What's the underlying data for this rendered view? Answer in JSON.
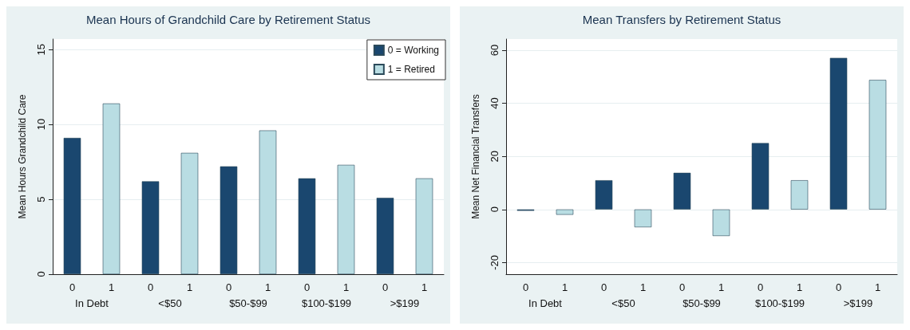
{
  "chart_data": [
    {
      "type": "bar",
      "title": "Mean Hours of Grandchild Care by Retirement Status",
      "ylabel": "Mean Hours Grandchild Care",
      "categories": [
        "In Debt",
        "<$50",
        "$50-$99",
        "$100-$199",
        ">$199"
      ],
      "series": [
        {
          "name": "0 = Working",
          "color": "#1a476f",
          "values": [
            9.1,
            6.2,
            7.2,
            6.4,
            5.1
          ]
        },
        {
          "name": "1 = Retired",
          "color": "#b9dde3",
          "values": [
            11.4,
            8.1,
            9.6,
            7.3,
            6.4
          ]
        }
      ],
      "annotations": [
        "0",
        "1",
        "0",
        "1",
        "0",
        "1",
        "0",
        "1",
        "0",
        "1"
      ],
      "ylim": [
        0,
        15.7
      ],
      "yticks": [
        0,
        5,
        10,
        15
      ],
      "grid": "y",
      "legend": "top right"
    },
    {
      "type": "bar",
      "title": "Mean Transfers by Retirement Status",
      "ylabel": "Mean Net Financial Transfers",
      "categories": [
        "In Debt",
        "<$50",
        "$50-$99",
        "$100-$199",
        ">$199"
      ],
      "series": [
        {
          "color": "#1a476f",
          "values": [
            -0.5,
            11,
            13.8,
            25,
            57.1
          ]
        },
        {
          "color": "#b9dde3",
          "values": [
            -2,
            -6.7,
            -10,
            11,
            48.8
          ]
        }
      ],
      "annotations": [
        "0",
        "1",
        "0",
        "1",
        "0",
        "1",
        "0",
        "1",
        "0",
        "1"
      ],
      "ylim": [
        -24.4,
        64.2
      ],
      "yticks": [
        -20,
        0,
        20,
        40,
        60
      ],
      "grid": "y",
      "legend": false
    }
  ]
}
